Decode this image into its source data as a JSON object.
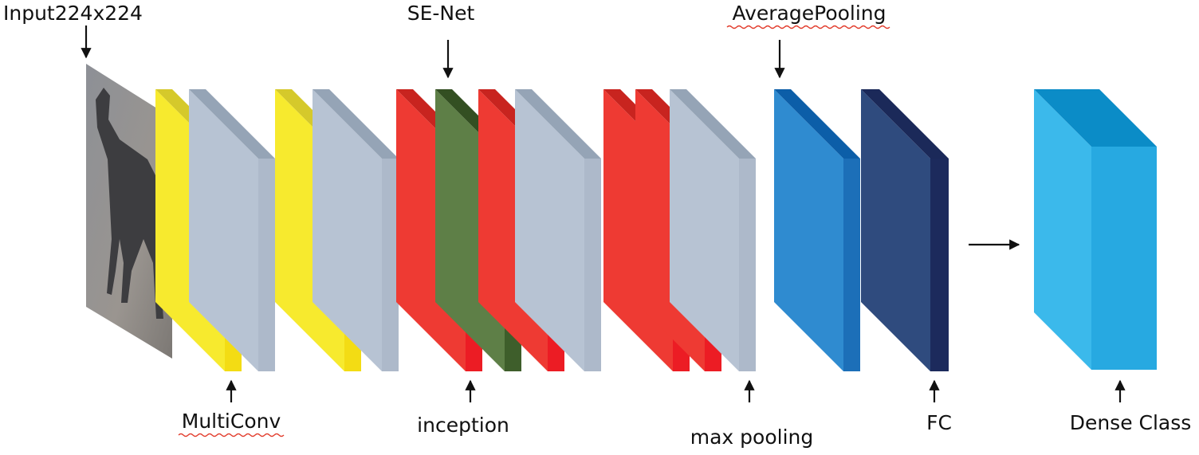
{
  "labels": {
    "input": "Input224x224",
    "se_net": "SE-Net",
    "average_pooling": "AveragePooling",
    "multi_conv": "MultiConv",
    "inception": "inception",
    "max_pooling": "max pooling",
    "fc": "FC",
    "dense_class": "Dense Class"
  }
}
